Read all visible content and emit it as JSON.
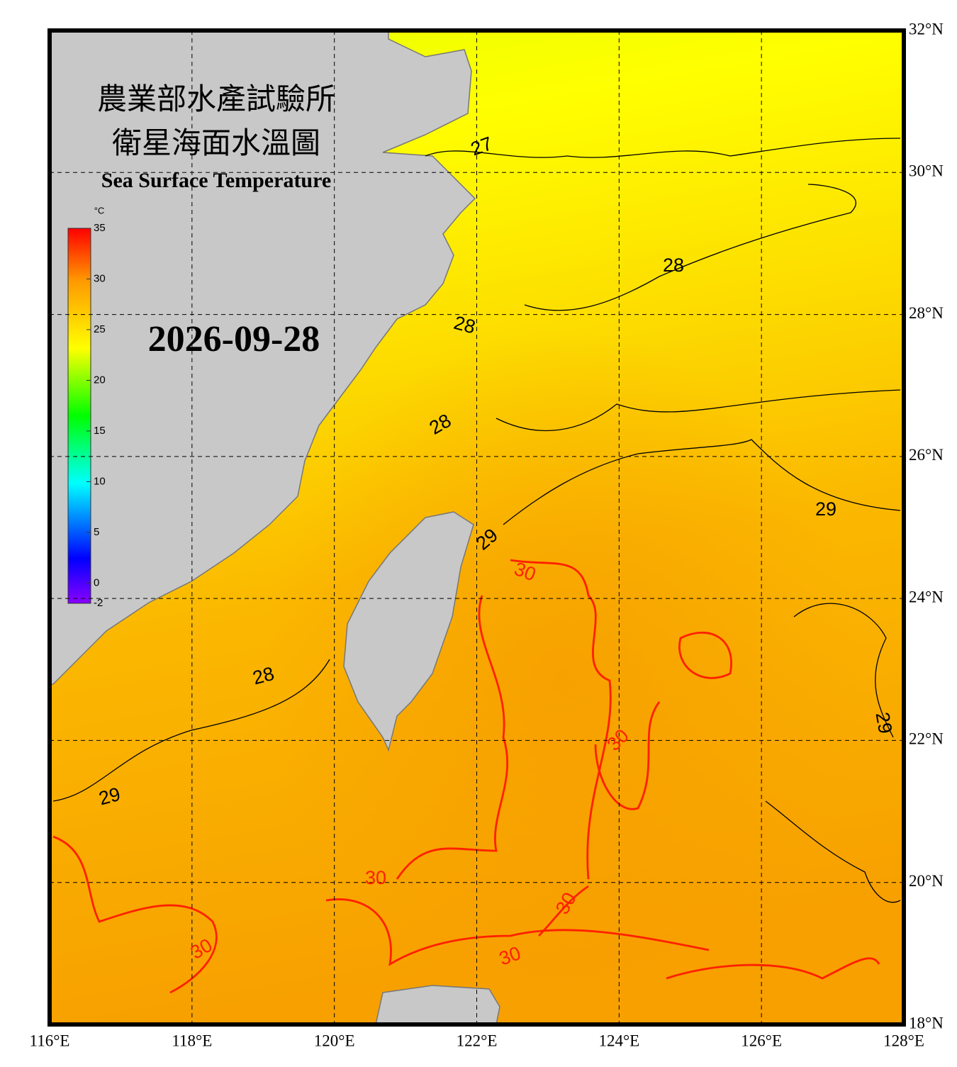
{
  "title_zh_1": "農業部水產試驗所",
  "title_zh_2": "衛星海面水溫圖",
  "title_en": "Sea Surface Temperature",
  "date": "2026-09-28",
  "colorbar": {
    "unit": "°C",
    "lim": [
      -2,
      35
    ],
    "ticks": [
      35,
      30,
      25,
      20,
      15,
      10,
      5,
      0,
      -2
    ]
  },
  "xlim": [
    116,
    128
  ],
  "ylim": [
    18,
    32
  ],
  "xticks": [
    {
      "value": 116,
      "label": "116°E"
    },
    {
      "value": 118,
      "label": "118°E"
    },
    {
      "value": 120,
      "label": "120°E"
    },
    {
      "value": 122,
      "label": "122°E"
    },
    {
      "value": 124,
      "label": "124°E"
    },
    {
      "value": 126,
      "label": "126°E"
    },
    {
      "value": 128,
      "label": "128°E"
    }
  ],
  "yticks": [
    {
      "value": 18,
      "label": "18°N"
    },
    {
      "value": 20,
      "label": "20°N"
    },
    {
      "value": 22,
      "label": "22°N"
    },
    {
      "value": 24,
      "label": "24°N"
    },
    {
      "value": 26,
      "label": "26°N"
    },
    {
      "value": 28,
      "label": "28°N"
    },
    {
      "value": 30,
      "label": "30°N"
    },
    {
      "value": 32,
      "label": "32°N"
    }
  ],
  "contour_labels": [
    "27",
    "28",
    "28",
    "28",
    "28",
    "29",
    "29",
    "29",
    "29",
    "30",
    "30",
    "30",
    "30",
    "30",
    "30"
  ]
}
